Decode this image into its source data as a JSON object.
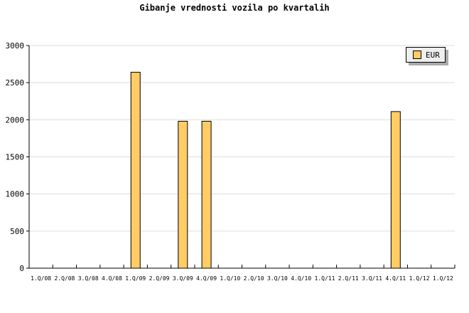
{
  "chart_data": {
    "type": "bar",
    "title": "Gibanje vrednosti vozila po kvartalih",
    "xlabel": "",
    "ylabel": "",
    "ylim": [
      0,
      3000
    ],
    "yticks": [
      0,
      500,
      1000,
      1500,
      2000,
      2500,
      3000
    ],
    "grid": true,
    "legend_placement": "top-right",
    "categories": [
      "1.Q/08",
      "2.Q/08",
      "3.Q/08",
      "4.Q/08",
      "1.Q/09",
      "2.Q/09",
      "3.Q/09",
      "4.Q/09",
      "1.Q/10",
      "2.Q/10",
      "3.Q/10",
      "4.Q/10",
      "1.Q/11",
      "2.Q/11",
      "3.Q/11",
      "4.Q/11",
      "1.Q/12",
      "1.Q/12"
    ],
    "series": [
      {
        "name": "EUR",
        "color": "#ffcc66",
        "values": [
          0,
          0,
          0,
          0,
          2640,
          0,
          1980,
          1980,
          0,
          0,
          0,
          0,
          0,
          0,
          0,
          2110,
          0,
          0
        ]
      }
    ]
  }
}
